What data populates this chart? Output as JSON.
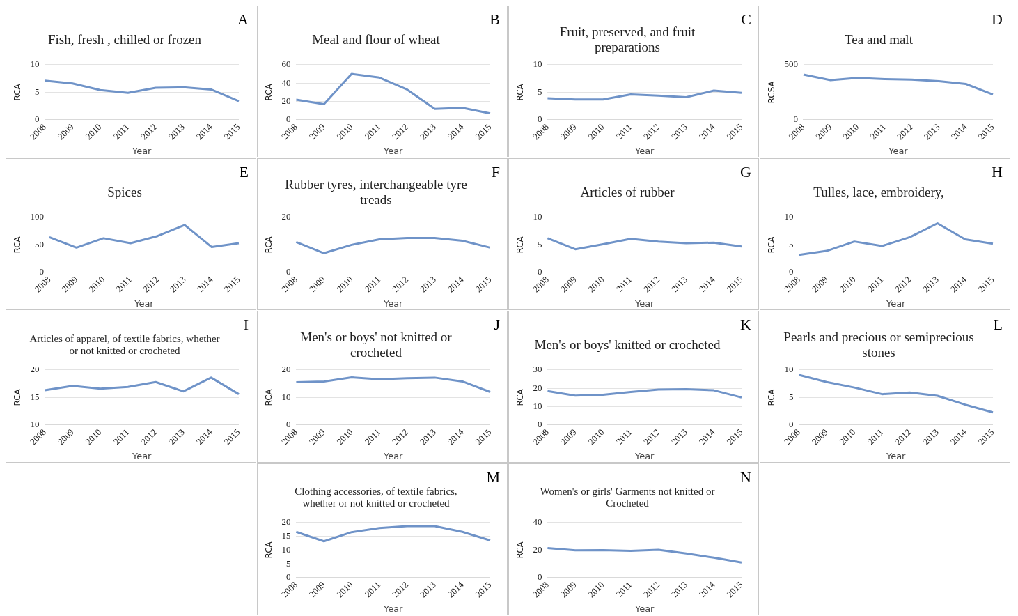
{
  "chart_data": [
    {
      "type": "line",
      "title": "Fish, fresh , chilled or frozen",
      "annotations": [
        "A"
      ],
      "xlabel": "Year",
      "ylabel": "RCA",
      "categories": [
        "2008",
        "2009",
        "2010",
        "2011",
        "2012",
        "2013",
        "2014",
        "2015"
      ],
      "series": [
        {
          "color": "#6f93c8",
          "values": [
            7.1,
            6.6,
            5.4,
            4.9,
            5.8,
            5.9,
            5.5,
            3.4
          ]
        }
      ],
      "ylim": [
        0,
        10
      ],
      "yticks": [
        0,
        5,
        10
      ],
      "grid": "y",
      "legend": false,
      "marker": "none"
    },
    {
      "type": "line",
      "title": "Meal and flour of wheat",
      "annotations": [
        "B"
      ],
      "xlabel": "Year",
      "ylabel": "RCA",
      "categories": [
        "2008",
        "2009",
        "2010",
        "2011",
        "2012",
        "2013",
        "2014",
        "2015"
      ],
      "series": [
        {
          "color": "#6f93c8",
          "values": [
            22,
            17,
            50,
            46,
            33,
            12,
            13,
            7
          ]
        }
      ],
      "ylim": [
        0,
        60
      ],
      "yticks": [
        0,
        20,
        40,
        60
      ],
      "grid": "y",
      "legend": false,
      "marker": "none"
    },
    {
      "type": "line",
      "title": "Fruit, preserved, and fruit preparations",
      "annotations": [
        "C"
      ],
      "xlabel": "Year",
      "ylabel": "RCA",
      "categories": [
        "2008",
        "2009",
        "2010",
        "2011",
        "2012",
        "2013",
        "2014",
        "2015"
      ],
      "series": [
        {
          "color": "#6f93c8",
          "values": [
            3.9,
            3.7,
            3.7,
            4.6,
            4.4,
            4.1,
            5.3,
            4.9
          ]
        }
      ],
      "ylim": [
        0,
        10
      ],
      "yticks": [
        0,
        5,
        10
      ],
      "grid": "y",
      "legend": false,
      "marker": "none"
    },
    {
      "type": "line",
      "title": "Tea and malt",
      "annotations": [
        "D"
      ],
      "xlabel": "Year",
      "ylabel": "RCSA",
      "categories": [
        "2008",
        "2009",
        "2010",
        "2011",
        "2012",
        "2013",
        "2014",
        "2015"
      ],
      "series": [
        {
          "color": "#6f93c8",
          "values": [
            410,
            360,
            380,
            370,
            365,
            350,
            325,
            230
          ]
        }
      ],
      "ylim": [
        0,
        500
      ],
      "yticks": [
        0,
        500
      ],
      "grid": "y",
      "legend": false,
      "marker": "none"
    },
    {
      "type": "line",
      "title": "Spices",
      "annotations": [
        "E"
      ],
      "xlabel": "Year",
      "ylabel": "RCA",
      "categories": [
        "2008",
        "2009",
        "2010",
        "2011",
        "2012",
        "2013",
        "2014",
        "2015"
      ],
      "series": [
        {
          "color": "#6f93c8",
          "values": [
            64,
            45,
            62,
            53,
            66,
            86,
            46,
            53
          ]
        }
      ],
      "ylim": [
        0,
        100
      ],
      "yticks": [
        0,
        50,
        100
      ],
      "grid": "y",
      "legend": false,
      "marker": "none"
    },
    {
      "type": "line",
      "title": "Rubber tyres, interchangeable tyre treads",
      "annotations": [
        "F"
      ],
      "xlabel": "Year",
      "ylabel": "RCA",
      "categories": [
        "2008",
        "2009",
        "2010",
        "2011",
        "2012",
        "2013",
        "2014",
        "2015"
      ],
      "series": [
        {
          "color": "#6f93c8",
          "values": [
            11,
            7,
            10,
            12,
            12.5,
            12.5,
            11.5,
            9
          ]
        }
      ],
      "ylim": [
        0,
        20
      ],
      "yticks": [
        0,
        20
      ],
      "grid": "y",
      "legend": false,
      "marker": "none"
    },
    {
      "type": "line",
      "title": "Articles of rubber",
      "annotations": [
        "G"
      ],
      "xlabel": "Year",
      "ylabel": "RCA",
      "categories": [
        "2008",
        "2009",
        "2010",
        "2011",
        "2012",
        "2013",
        "2014",
        "2015"
      ],
      "series": [
        {
          "color": "#6f93c8",
          "values": [
            6.2,
            4.2,
            5.1,
            6.1,
            5.6,
            5.3,
            5.4,
            4.7
          ]
        }
      ],
      "ylim": [
        0,
        10
      ],
      "yticks": [
        0,
        5,
        10
      ],
      "grid": "y",
      "legend": false,
      "marker": "none"
    },
    {
      "type": "line",
      "title": "Tulles, lace, embroidery,",
      "annotations": [
        "H"
      ],
      "xlabel": "Year",
      "ylabel": "RCA",
      "categories": [
        "2008",
        "2009",
        "2010",
        "2011",
        "2012",
        "2013",
        "2014",
        "2015"
      ],
      "series": [
        {
          "color": "#6f93c8",
          "values": [
            3.2,
            3.9,
            5.6,
            4.8,
            6.4,
            8.9,
            6.0,
            5.2
          ]
        }
      ],
      "ylim": [
        0,
        10
      ],
      "yticks": [
        0,
        5,
        10
      ],
      "grid": "y",
      "legend": false,
      "marker": "none"
    },
    {
      "type": "line",
      "title": "Articles of apparel, of textile fabrics, whether or not knitted or crocheted",
      "annotations": [
        "I"
      ],
      "xlabel": "Year",
      "ylabel": "RCA",
      "categories": [
        "2008",
        "2009",
        "2010",
        "2011",
        "2012",
        "2013",
        "2014",
        "2015"
      ],
      "series": [
        {
          "color": "#6f93c8",
          "values": [
            16.3,
            17.1,
            16.6,
            16.9,
            17.8,
            16.1,
            18.6,
            15.6
          ]
        }
      ],
      "ylim": [
        10,
        20
      ],
      "yticks": [
        10,
        15,
        20
      ],
      "grid": "y",
      "legend": false,
      "marker": "none"
    },
    {
      "type": "line",
      "title": "Men's or boys' not knitted or crocheted",
      "annotations": [
        "J"
      ],
      "xlabel": "Year",
      "ylabel": "RCA",
      "categories": [
        "2008",
        "2009",
        "2010",
        "2011",
        "2012",
        "2013",
        "2014",
        "2015"
      ],
      "series": [
        {
          "color": "#6f93c8",
          "values": [
            15.5,
            15.8,
            17.3,
            16.6,
            17,
            17.2,
            15.8,
            12
          ]
        }
      ],
      "ylim": [
        0,
        20
      ],
      "yticks": [
        0,
        10,
        20
      ],
      "grid": "y",
      "legend": false,
      "marker": "none"
    },
    {
      "type": "line",
      "title": "Men's or boys' knitted or crocheted",
      "annotations": [
        "K"
      ],
      "xlabel": "Year",
      "ylabel": "RCA",
      "categories": [
        "2008",
        "2009",
        "2010",
        "2011",
        "2012",
        "2013",
        "2014",
        "2015"
      ],
      "series": [
        {
          "color": "#6f93c8",
          "values": [
            18.5,
            16,
            16.5,
            18,
            19.3,
            19.5,
            18.9,
            15
          ]
        }
      ],
      "ylim": [
        0,
        30
      ],
      "yticks": [
        0,
        10,
        20,
        30
      ],
      "grid": "y",
      "legend": false,
      "marker": "none"
    },
    {
      "type": "line",
      "title": "Pearls and precious or semiprecious stones",
      "annotations": [
        "L"
      ],
      "xlabel": "Year",
      "ylabel": "RCA",
      "categories": [
        "2008",
        "2009",
        "2010",
        "2011",
        "2012",
        "2013",
        "2014",
        "2015"
      ],
      "series": [
        {
          "color": "#6f93c8",
          "values": [
            9.1,
            7.8,
            6.8,
            5.6,
            5.9,
            5.3,
            3.7,
            2.3
          ]
        }
      ],
      "ylim": [
        0,
        10
      ],
      "yticks": [
        0,
        5,
        10
      ],
      "grid": "y",
      "legend": false,
      "marker": "none"
    },
    {
      "type": "line",
      "title": "Clothing accessories, of textile fabrics, whether or not knitted or crocheted",
      "annotations": [
        "M"
      ],
      "xlabel": "Year",
      "ylabel": "RCA",
      "categories": [
        "2008",
        "2009",
        "2010",
        "2011",
        "2012",
        "2013",
        "2014",
        "2015"
      ],
      "series": [
        {
          "color": "#6f93c8",
          "values": [
            16.6,
            13.2,
            16.5,
            18,
            18.7,
            18.7,
            16.6,
            13.5
          ]
        }
      ],
      "ylim": [
        0,
        20
      ],
      "yticks": [
        0,
        5,
        10,
        15,
        20
      ],
      "grid": "y",
      "legend": false,
      "marker": "none"
    },
    {
      "type": "line",
      "title": "Women's or girls' Garments not knitted or Crocheted",
      "annotations": [
        "N"
      ],
      "xlabel": "Year",
      "ylabel": "RCA",
      "categories": [
        "2008",
        "2009",
        "2010",
        "2011",
        "2012",
        "2013",
        "2014",
        "2015"
      ],
      "series": [
        {
          "color": "#6f93c8",
          "values": [
            21.5,
            19.8,
            20,
            19.5,
            20.2,
            17.5,
            14.5,
            11
          ]
        }
      ],
      "ylim": [
        0,
        40
      ],
      "yticks": [
        0,
        20,
        40
      ],
      "grid": "y",
      "legend": false,
      "marker": "none"
    }
  ]
}
